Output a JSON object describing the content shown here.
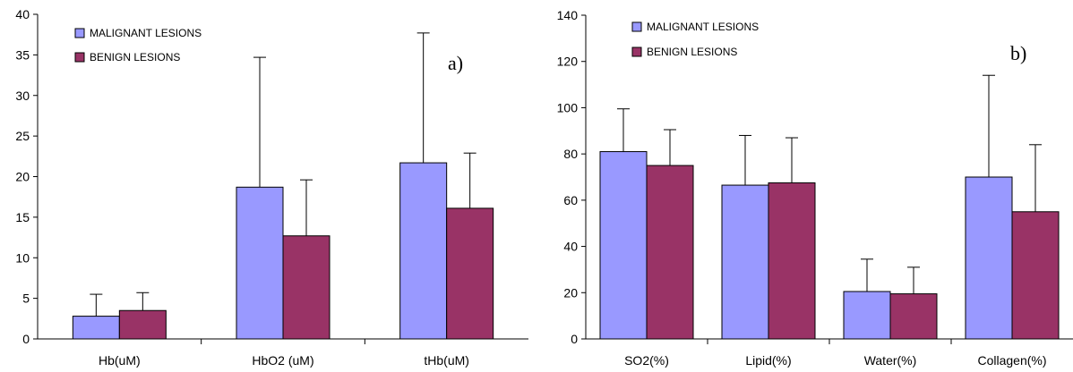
{
  "chart_data": [
    {
      "type": "bar",
      "panel_label": "a)",
      "categories": [
        "Hb(uM)",
        "HbO2 (uM)",
        "tHb(uM)"
      ],
      "series": [
        {
          "name": "MALIGNANT LESIONS",
          "values": [
            2.8,
            18.7,
            21.7
          ],
          "error": [
            2.7,
            16.0,
            16.0
          ]
        },
        {
          "name": "BENIGN LESIONS",
          "values": [
            3.5,
            12.7,
            16.1
          ],
          "error": [
            2.2,
            6.9,
            6.8
          ]
        }
      ],
      "ylim": [
        0,
        40
      ],
      "yticks": [
        "0",
        "5",
        "10",
        "15",
        "20",
        "25",
        "30",
        "35",
        "40"
      ],
      "legend": "top-left",
      "grid": false
    },
    {
      "type": "bar",
      "panel_label": "b)",
      "categories": [
        "SO2(%)",
        "Lipid(%)",
        "Water(%)",
        "Collagen(%)"
      ],
      "series": [
        {
          "name": "MALIGNANT LESIONS",
          "values": [
            81,
            66.5,
            20.5,
            70
          ],
          "error": [
            18.5,
            21.5,
            14,
            44
          ]
        },
        {
          "name": "BENIGN LESIONS",
          "values": [
            75,
            67.5,
            19.5,
            55
          ],
          "error": [
            15.5,
            19.5,
            11.5,
            29
          ]
        }
      ],
      "ylim": [
        0,
        140
      ],
      "yticks": [
        "0",
        "20",
        "40",
        "60",
        "80",
        "100",
        "120",
        "140"
      ],
      "legend": "top-left",
      "grid": false
    }
  ],
  "colors": {
    "malignant": "#9999ff",
    "benign": "#993366",
    "axis": "#000000",
    "background": "#ffffff"
  }
}
